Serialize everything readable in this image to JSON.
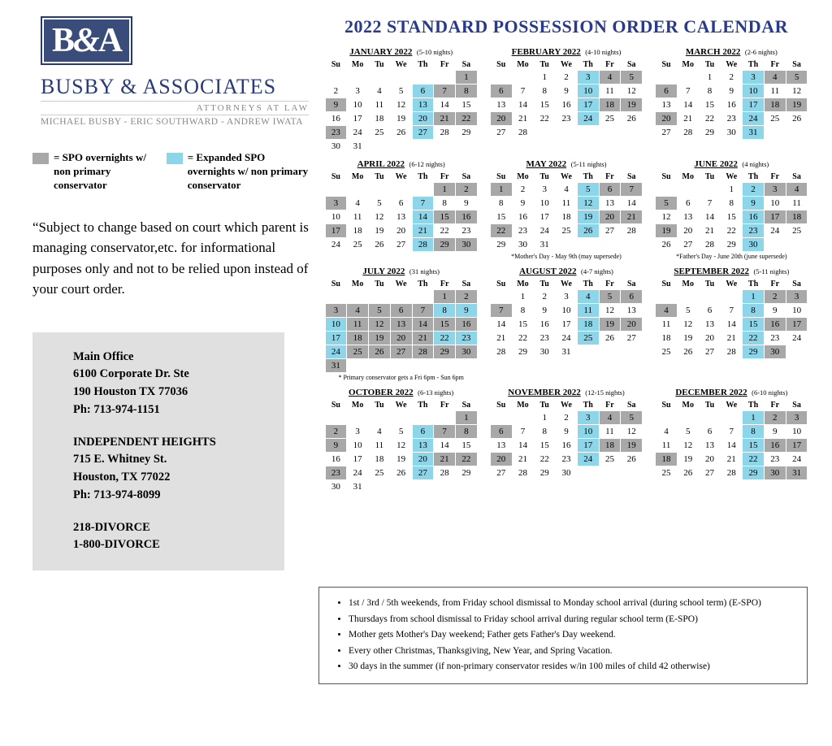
{
  "logo": {
    "badge": "B&A",
    "firm": "BUSBY & ASSOCIATES",
    "sub": "ATTORNEYS AT LAW",
    "names": "MICHAEL BUSBY - ERIC SOUTHWARD - ANDREW IWATA"
  },
  "title": "2022 STANDARD POSSESSION ORDER CALENDAR",
  "legend": {
    "gray": "= SPO overnights w/ non primary conservator",
    "blue": "= Expanded SPO overnights w/ non primary conservator"
  },
  "disclaimer": "“Subject to change based on court which parent is managing conservator,etc. for informational purposes only and not to be relied upon instead of your court order.",
  "contact": {
    "main": {
      "label": "Main Office",
      "addr1": "6100 Corporate Dr. Ste",
      "addr2": "190 Houston TX 77036",
      "ph": "Ph: 713-974-1151"
    },
    "ind": {
      "label": "INDEPENDENT HEIGHTS",
      "addr1": "715 E. Whitney St.",
      "addr2": "Houston, TX 77022",
      "ph": "Ph: 713-974-8099"
    },
    "nums": {
      "a": "218-DIVORCE",
      "b": "1-800-DIVORCE"
    }
  },
  "dow": [
    "Su",
    "Mo",
    "Tu",
    "We",
    "Th",
    "Fr",
    "Sa"
  ],
  "colors": {
    "gray": "#a8a8a8",
    "blue": "#8dd5e8",
    "title": "#2a3a8a"
  },
  "months": [
    {
      "name": "JANUARY 2022",
      "nights": "(5-10 nights)",
      "start": 6,
      "days": 31,
      "gray": [
        1,
        7,
        8,
        9,
        21,
        22,
        23
      ],
      "blue": [
        6,
        13,
        20,
        27
      ],
      "note": ""
    },
    {
      "name": "FEBRUARY 2022",
      "nights": "(4-10 nights)",
      "start": 2,
      "days": 28,
      "gray": [
        4,
        5,
        6,
        18,
        19,
        20
      ],
      "blue": [
        3,
        10,
        17,
        24
      ],
      "note": ""
    },
    {
      "name": "MARCH 2022",
      "nights": "(2-6 nights)",
      "start": 2,
      "days": 31,
      "gray": [
        4,
        5,
        6,
        18,
        19,
        20
      ],
      "blue": [
        3,
        10,
        17,
        24,
        31
      ],
      "note": ""
    },
    {
      "name": "APRIL 2022",
      "nights": "(6-12 nights)",
      "start": 5,
      "days": 30,
      "gray": [
        1,
        2,
        3,
        15,
        16,
        17,
        29,
        30
      ],
      "blue": [
        7,
        14,
        21,
        28
      ],
      "note": ""
    },
    {
      "name": "MAY 2022",
      "nights": "(5-11 nights)",
      "start": 0,
      "days": 31,
      "gray": [
        1,
        6,
        7,
        20,
        21,
        22
      ],
      "blue": [
        5,
        12,
        19,
        26
      ],
      "note": "*Mother's Day - May 9th (may supersede)"
    },
    {
      "name": "JUNE 2022",
      "nights": "(4 nights)",
      "start": 3,
      "days": 30,
      "gray": [
        3,
        4,
        5,
        17,
        18,
        19
      ],
      "blue": [
        2,
        9,
        16,
        23,
        30
      ],
      "note": "*Father's Day - June 20th (june supersede)"
    },
    {
      "name": "JULY 2022",
      "nights": "(31 nights)",
      "start": 5,
      "days": 31,
      "gray": [
        1,
        2,
        3,
        4,
        5,
        6,
        7,
        11,
        12,
        13,
        14,
        15,
        16,
        18,
        19,
        20,
        21,
        25,
        26,
        27,
        28,
        29,
        30,
        31
      ],
      "blue": [
        8,
        9,
        10,
        17,
        22,
        23,
        24
      ],
      "note": "* Primary conservator gets a Fri 6pm - Sun 6pm"
    },
    {
      "name": "AUGUST 2022",
      "nights": "(4-7 nights)",
      "start": 1,
      "days": 31,
      "gray": [
        5,
        6,
        7,
        19,
        20
      ],
      "blue": [
        4,
        11,
        18,
        25
      ],
      "note": ""
    },
    {
      "name": "SEPTEMBER 2022",
      "nights": "(5-11 nights)",
      "start": 4,
      "days": 30,
      "gray": [
        2,
        3,
        4,
        16,
        17,
        30
      ],
      "blue": [
        1,
        8,
        15,
        22,
        29
      ],
      "note": ""
    },
    {
      "name": "OCTOBER 2022",
      "nights": "(6-13 nights)",
      "start": 6,
      "days": 31,
      "gray": [
        1,
        2,
        7,
        8,
        9,
        21,
        22,
        23
      ],
      "blue": [
        6,
        13,
        20,
        27
      ],
      "note": ""
    },
    {
      "name": "NOVEMBER 2022",
      "nights": "(12-15 nights)",
      "start": 2,
      "days": 30,
      "gray": [
        4,
        5,
        6,
        18,
        19,
        20
      ],
      "blue": [
        3,
        10,
        17,
        24
      ],
      "note": ""
    },
    {
      "name": "DECEMBER 2022",
      "nights": "(6-10 nights)",
      "start": 4,
      "days": 31,
      "gray": [
        2,
        3,
        16,
        17,
        18,
        30,
        31
      ],
      "blue": [
        1,
        8,
        15,
        22,
        29
      ],
      "note": ""
    }
  ],
  "rules": [
    "1st / 3rd / 5th weekends, from Friday school dismissal to Monday school arrival (during school term) (E-SPO)",
    "Thursdays from school dismissal to Friday school arrival during regular school term (E-SPO)",
    "Mother gets Mother's Day weekend; Father gets Father's Day weekend.",
    "Every other Christmas, Thanksgiving, New Year, and Spring Vacation.",
    "30 days in the summer (if non-primary conservator resides w/in 100 miles of child 42 otherwise)"
  ]
}
